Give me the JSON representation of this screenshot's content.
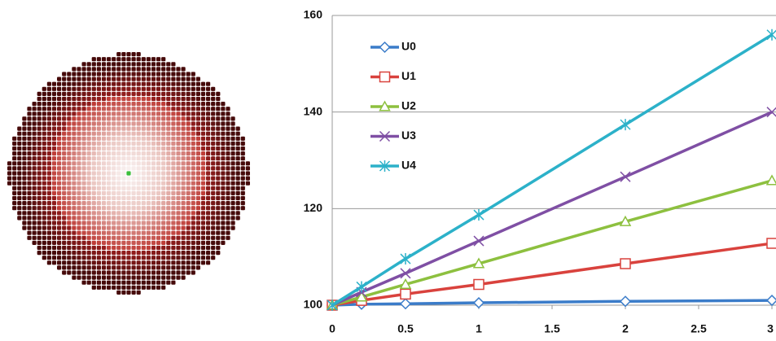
{
  "chart_data": {
    "type": "line",
    "x": [
      0,
      0.2,
      0.5,
      1,
      2,
      3
    ],
    "series": [
      {
        "name": "U0",
        "color": "#3b7cc9",
        "marker": "diamond",
        "values": [
          100,
          100.2,
          100.3,
          100.5,
          100.8,
          101
        ]
      },
      {
        "name": "U1",
        "color": "#d9423d",
        "marker": "square",
        "values": [
          100,
          101,
          102.3,
          104.3,
          108.6,
          112.8
        ]
      },
      {
        "name": "U2",
        "color": "#8dc03f",
        "marker": "triangle",
        "values": [
          100,
          101.7,
          104.3,
          108.6,
          117.3,
          125.8
        ]
      },
      {
        "name": "U3",
        "color": "#7f4fa4",
        "marker": "x",
        "values": [
          100,
          102.7,
          106.6,
          113.3,
          126.6,
          140
        ]
      },
      {
        "name": "U4",
        "color": "#2cb1c9",
        "marker": "asterisk",
        "values": [
          100,
          103.8,
          109.6,
          118.7,
          137.4,
          156
        ]
      }
    ],
    "xlim": [
      0,
      3
    ],
    "xticks": [
      0,
      0.5,
      1,
      1.5,
      2,
      2.5,
      3
    ],
    "ylim": [
      100,
      160
    ],
    "yticks": [
      100,
      120,
      140,
      160
    ],
    "grid": true,
    "legend": "upper left"
  }
}
